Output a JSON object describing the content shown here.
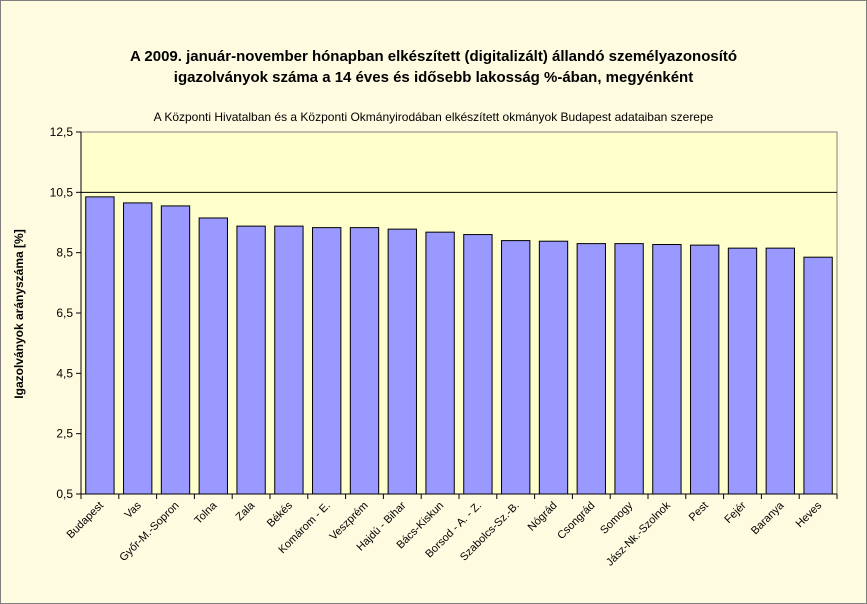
{
  "chart_data": {
    "type": "bar",
    "title_line1": "A 2009. január-november hónapban elkészített (digitalizált) állandó személyazonosító",
    "title_line2": "igazolványok száma a 14 éves és idősebb lakosság %-ában, megyénként",
    "subtitle": "A  Központi Hivatalban és a Központi Okmányirodában elkészített okmányok Budapest adataiban szerepe",
    "xlabel": "",
    "ylabel": "Igazolványok arányszáma [%]",
    "ylim": [
      0.5,
      12.5
    ],
    "yticks": [
      "0,5",
      "2,5",
      "4,5",
      "6,5",
      "8,5",
      "10,5",
      "12,5"
    ],
    "ytick_values": [
      0.5,
      2.5,
      4.5,
      6.5,
      8.5,
      10.5,
      12.5
    ],
    "categories": [
      "Budapest",
      "Vas",
      "Győr-M.-Sopron",
      "Tolna",
      "Zala",
      "Békés",
      "Komárom - E.",
      "Veszprém",
      "Hajdú - Bihar",
      "Bács-Kiskun",
      "Borsod - A. - Z.",
      "Szabolcs-Sz.-B.",
      "Nógrád",
      "Csongrád",
      "Somogy",
      "Jász-Nk.-Szolnok",
      "Pest",
      "Fejér",
      "Baranya",
      "Heves"
    ],
    "values": [
      10.35,
      10.15,
      10.05,
      9.65,
      9.38,
      9.38,
      9.33,
      9.33,
      9.28,
      9.18,
      9.1,
      8.9,
      8.88,
      8.8,
      8.8,
      8.77,
      8.75,
      8.65,
      8.65,
      8.35
    ],
    "grid": "horizontal gridlines at 10,5 only",
    "legend": "none"
  },
  "colors": {
    "background": "#fffbe0",
    "plot_area": "#ffffcc",
    "bar_fill": "#9999ff",
    "bar_stroke": "#000000"
  }
}
